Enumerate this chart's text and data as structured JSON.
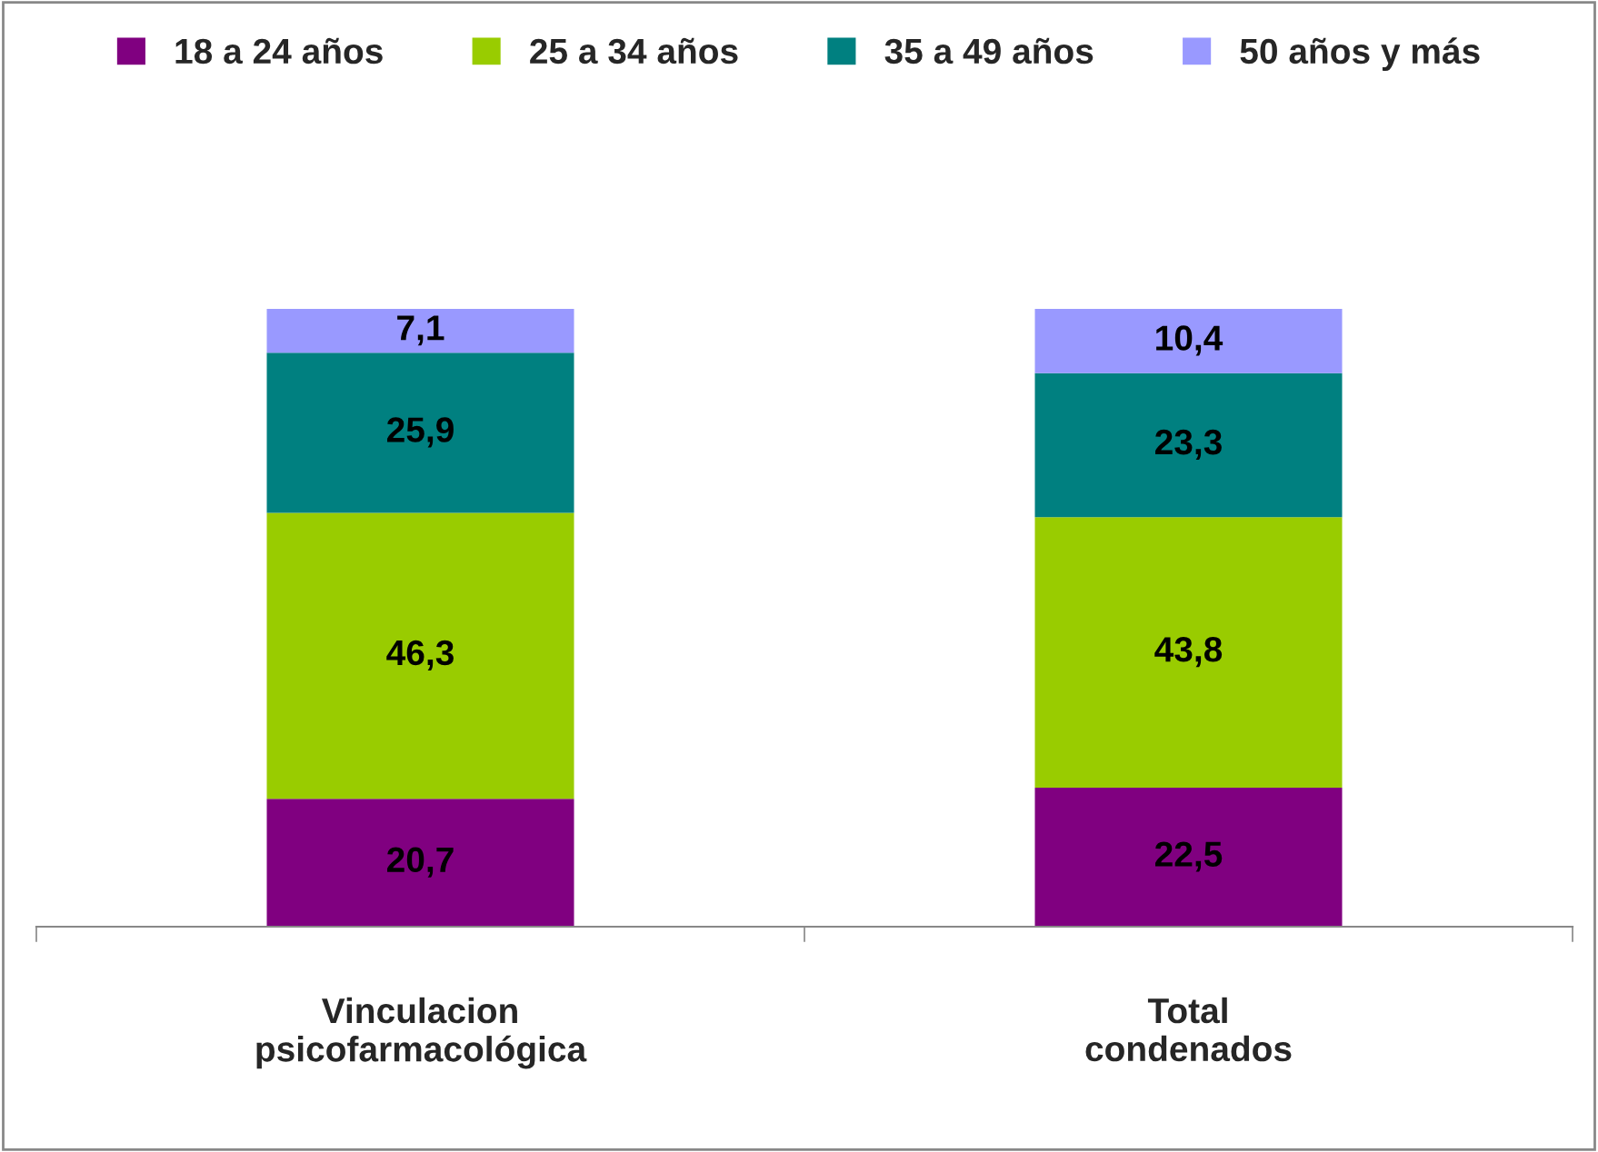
{
  "chart_data": {
    "type": "bar",
    "stacked": true,
    "categories": [
      "Vinculacion\npsicofarmacológica",
      "Total\ncondenados"
    ],
    "series": [
      {
        "name": "18 a 24 años",
        "color": "#800080",
        "values": [
          20.7,
          22.5
        ],
        "value_labels": [
          "20,7",
          "22,5"
        ]
      },
      {
        "name": "25 a 34 años",
        "color": "#99cc00",
        "values": [
          46.3,
          43.8
        ],
        "value_labels": [
          "46,3",
          "43,8"
        ]
      },
      {
        "name": "35 a 49 años",
        "color": "#008080",
        "values": [
          25.9,
          23.3
        ],
        "value_labels": [
          "25,9",
          "23,3"
        ]
      },
      {
        "name": "50 años y más",
        "color": "#9999ff",
        "values": [
          7.1,
          10.4
        ],
        "value_labels": [
          "7,1",
          "10,4"
        ]
      }
    ],
    "legend": "top",
    "grid": false,
    "tick_labels": "x"
  }
}
